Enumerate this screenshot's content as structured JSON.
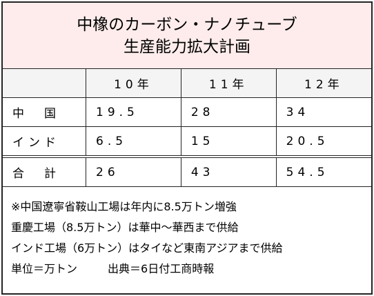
{
  "header": {
    "title": [
      "中橡のカーボン・ナノチューブ",
      "生産能力拡大計画"
    ]
  },
  "table": {
    "columns": [
      "",
      "10年",
      "11年",
      "12年"
    ],
    "rows": [
      [
        "中　国",
        "19.5",
        "28",
        "34"
      ],
      [
        "インド",
        "6.5",
        "15",
        "20.5"
      ],
      [
        "合　計",
        "26",
        "43",
        "54.5"
      ]
    ]
  },
  "notes": {
    "lines": [
      "※中国遼寧省鞍山工場は年内に8.5万トン増強",
      "重慶工場（8.5万トン）は華中～華西まで供給",
      "インド工場（6万トン）はタイなど東南アジアまで供給"
    ],
    "unit": "単位＝万トン",
    "source": "出典＝6日付工商時報"
  }
}
